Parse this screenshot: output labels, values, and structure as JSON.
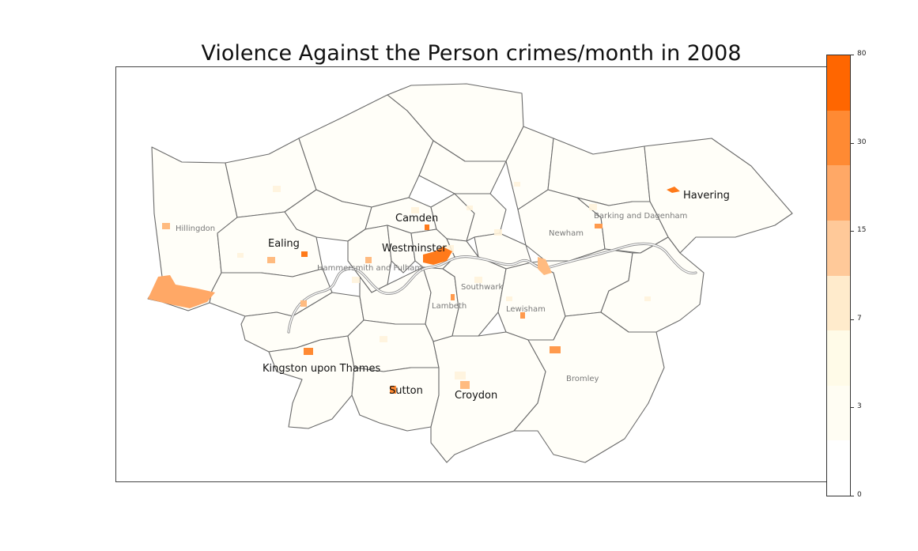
{
  "title": "Violence Against the Person crimes/month in 2008",
  "labels_major": [
    "Havering",
    "Camden",
    "Ealing",
    "Westminster",
    "Kingston upon Thames",
    "Sutton",
    "Croydon"
  ],
  "labels_minor": [
    "Hillingdon",
    "Barking and Dagenham",
    "Newham",
    "Hammersmith and Fulham",
    "Southwark",
    "Lambeth",
    "Lewisham",
    "Bromley"
  ],
  "colorbar": {
    "ticks": [
      "80",
      "30",
      "15",
      "7",
      "3",
      "0"
    ],
    "bin_colors": [
      "#ff6600",
      "#ff8a33",
      "#ffa866",
      "#ffc999",
      "#ffebcc",
      "#fffbe8",
      "#fffdf3",
      "#ffffff"
    ]
  },
  "colors": {
    "border": "#666666",
    "river": "#9a9a9a",
    "hotspot_high": "#ff6a00",
    "hotspot_mid": "#ff9a4d",
    "hotspot_low": "#ffbb80"
  }
}
